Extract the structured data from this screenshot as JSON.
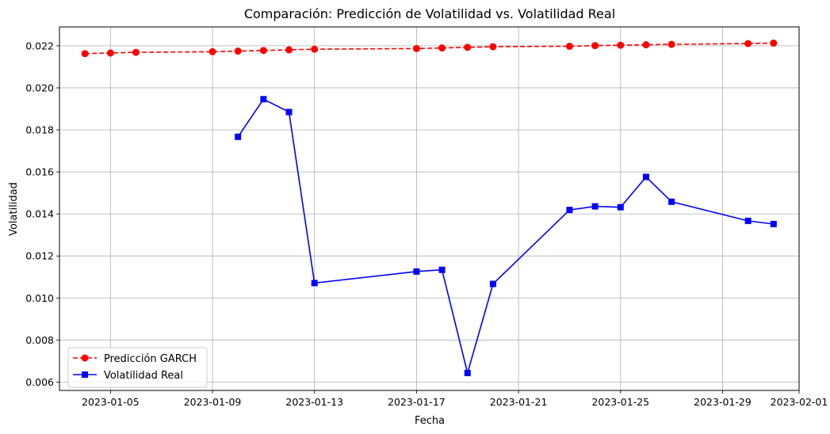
{
  "chart_data": {
    "type": "line",
    "title": "Comparación: Predicción de Volatilidad vs. Volatilidad Real",
    "xlabel": "Fecha",
    "ylabel": "Volatilidad",
    "xlim": [
      "2023-01-03",
      "2023-02-01"
    ],
    "ylim": [
      0.0056,
      0.0229
    ],
    "x_ticks": [
      "2023-01-05",
      "2023-01-09",
      "2023-01-13",
      "2023-01-17",
      "2023-01-21",
      "2023-01-25",
      "2023-01-29",
      "2023-02-01"
    ],
    "y_ticks": [
      "0.006",
      "0.008",
      "0.010",
      "0.012",
      "0.014",
      "0.016",
      "0.018",
      "0.020",
      "0.022"
    ],
    "grid": true,
    "legend_position": "lower-left",
    "series": [
      {
        "name": "Predicción GARCH",
        "color": "#ff0000",
        "line_style": "dashed",
        "marker": "circle",
        "points": [
          {
            "x": "2023-01-04",
            "y": 0.02163
          },
          {
            "x": "2023-01-05",
            "y": 0.02166
          },
          {
            "x": "2023-01-06",
            "y": 0.02169
          },
          {
            "x": "2023-01-09",
            "y": 0.02172
          },
          {
            "x": "2023-01-10",
            "y": 0.02175
          },
          {
            "x": "2023-01-11",
            "y": 0.02178
          },
          {
            "x": "2023-01-12",
            "y": 0.02181
          },
          {
            "x": "2023-01-13",
            "y": 0.02184
          },
          {
            "x": "2023-01-17",
            "y": 0.02187
          },
          {
            "x": "2023-01-18",
            "y": 0.0219
          },
          {
            "x": "2023-01-19",
            "y": 0.02193
          },
          {
            "x": "2023-01-20",
            "y": 0.02196
          },
          {
            "x": "2023-01-23",
            "y": 0.02198
          },
          {
            "x": "2023-01-24",
            "y": 0.02201
          },
          {
            "x": "2023-01-25",
            "y": 0.02203
          },
          {
            "x": "2023-01-26",
            "y": 0.02205
          },
          {
            "x": "2023-01-27",
            "y": 0.02207
          },
          {
            "x": "2023-01-30",
            "y": 0.02211
          },
          {
            "x": "2023-01-31",
            "y": 0.02213
          }
        ]
      },
      {
        "name": "Volatilidad Real",
        "color": "#0000ff",
        "line_style": "solid",
        "marker": "square",
        "points": [
          {
            "x": "2023-01-10",
            "y": 0.01767
          },
          {
            "x": "2023-01-11",
            "y": 0.01946
          },
          {
            "x": "2023-01-12",
            "y": 0.01885
          },
          {
            "x": "2023-01-13",
            "y": 0.01071
          },
          {
            "x": "2023-01-17",
            "y": 0.01126
          },
          {
            "x": "2023-01-18",
            "y": 0.01134
          },
          {
            "x": "2023-01-19",
            "y": 0.00643
          },
          {
            "x": "2023-01-20",
            "y": 0.01067
          },
          {
            "x": "2023-01-23",
            "y": 0.01419
          },
          {
            "x": "2023-01-24",
            "y": 0.01436
          },
          {
            "x": "2023-01-25",
            "y": 0.01432
          },
          {
            "x": "2023-01-26",
            "y": 0.01576
          },
          {
            "x": "2023-01-27",
            "y": 0.01458
          },
          {
            "x": "2023-01-30",
            "y": 0.01367
          },
          {
            "x": "2023-01-31",
            "y": 0.01352
          }
        ]
      }
    ]
  }
}
